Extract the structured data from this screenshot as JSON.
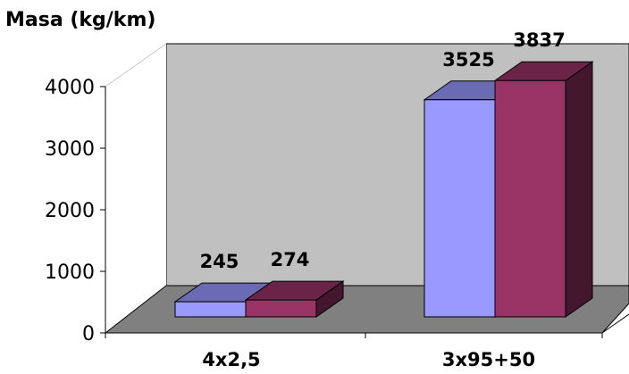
{
  "chart_data": {
    "type": "bar",
    "ylabel": "Masa (kg/km)",
    "categories": [
      "4x2,5",
      "3x95+50"
    ],
    "series": [
      {
        "values": [
          245,
          3525
        ],
        "color": "#9999ff"
      },
      {
        "values": [
          274,
          3837
        ],
        "color": "#993366"
      }
    ],
    "ylim": [
      0,
      4000
    ],
    "yticks": [
      "0",
      "1000",
      "2000",
      "3000",
      "4000"
    ],
    "value_labels": [
      [
        "245",
        "274"
      ],
      [
        "3525",
        "3837"
      ]
    ],
    "grid": false,
    "legend": "none",
    "wall_color": "#c0c0c0",
    "floor_color": "#808080"
  }
}
